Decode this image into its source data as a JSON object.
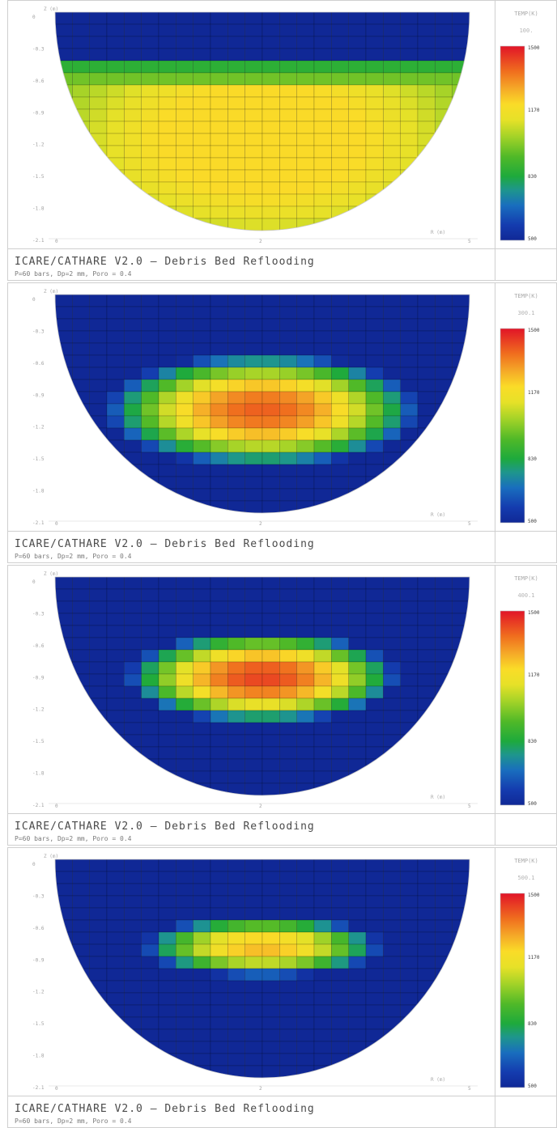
{
  "chart_data": [
    {
      "type": "heatmap",
      "title": "ICARE/CATHARE V2.0 — Debris Bed Reflooding",
      "subtitle": "P=60 bars, Dp=2 mm, Poro = 0.4",
      "colorbar": {
        "unit": "TEMP(K)",
        "ticks": [
          500,
          830,
          1170,
          1500
        ],
        "range": [
          500,
          1500
        ]
      },
      "time_label": "100.",
      "ylabel": "Z (m)",
      "xlabel": "R (m)",
      "y_ticks": [
        "0",
        "-0.3",
        "-0.6",
        "-0.9",
        "-1.2",
        "-1.5",
        "-1.8",
        "-2.1"
      ],
      "x_ticks": [
        "0",
        "2",
        "5"
      ],
      "field": {
        "kind": "plateau",
        "cx": 0.5,
        "cy": 0.58,
        "rx": 0.54,
        "ry": 0.55,
        "peak": 1170,
        "base": 500,
        "top_cut": 0.25
      }
    },
    {
      "type": "heatmap",
      "title": "ICARE/CATHARE V2.0 — Debris Bed Reflooding",
      "subtitle": "P=60 bars, Dp=2 mm, Poro = 0.4",
      "colorbar": {
        "unit": "TEMP(K)",
        "ticks": [
          500,
          830,
          1170,
          1500
        ],
        "range": [
          500,
          1500
        ]
      },
      "time_label": "300.1",
      "ylabel": "Z (m)",
      "xlabel": "R (m)",
      "y_ticks": [
        "0",
        "-0.3",
        "-0.6",
        "-0.9",
        "-1.2",
        "-1.5",
        "-1.8",
        "-2.1"
      ],
      "x_ticks": [
        "0",
        "2",
        "5"
      ],
      "field": {
        "kind": "blob",
        "cx": 0.5,
        "cy": 0.53,
        "rx": 0.38,
        "ry": 0.26,
        "peak": 1390,
        "base": 500
      }
    },
    {
      "type": "heatmap",
      "title": "ICARE/CATHARE V2.0 — Debris Bed Reflooding",
      "subtitle": "P=60 bars, Dp=2 mm, Poro = 0.4",
      "colorbar": {
        "unit": "TEMP(K)",
        "ticks": [
          500,
          830,
          1170,
          1500
        ],
        "range": [
          500,
          1500
        ]
      },
      "time_label": "400.1",
      "ylabel": "Z (m)",
      "xlabel": "R (m)",
      "y_ticks": [
        "0",
        "-0.3",
        "-0.6",
        "-0.9",
        "-1.2",
        "-1.5",
        "-1.8",
        "-2.1"
      ],
      "x_ticks": [
        "0",
        "2",
        "5"
      ],
      "field": {
        "kind": "blob",
        "cx": 0.5,
        "cy": 0.46,
        "rx": 0.33,
        "ry": 0.21,
        "peak": 1430,
        "base": 500
      }
    },
    {
      "type": "heatmap",
      "title": "ICARE/CATHARE V2.0 — Debris Bed Reflooding",
      "subtitle": "P=60 bars, Dp=2 mm, Poro = 0.4",
      "colorbar": {
        "unit": "TEMP(K)",
        "ticks": [
          500,
          830,
          1170,
          1500
        ],
        "range": [
          500,
          1500
        ]
      },
      "time_label": "500.1",
      "ylabel": "Z (m)",
      "xlabel": "R (m)",
      "y_ticks": [
        "0",
        "-0.3",
        "-0.6",
        "-0.9",
        "-1.2",
        "-1.5",
        "-1.8",
        "-2.1"
      ],
      "x_ticks": [
        "0",
        "2",
        "5"
      ],
      "field": {
        "kind": "blob",
        "cx": 0.5,
        "cy": 0.4,
        "rx": 0.29,
        "ry": 0.14,
        "peak": 1260,
        "base": 500
      }
    }
  ]
}
